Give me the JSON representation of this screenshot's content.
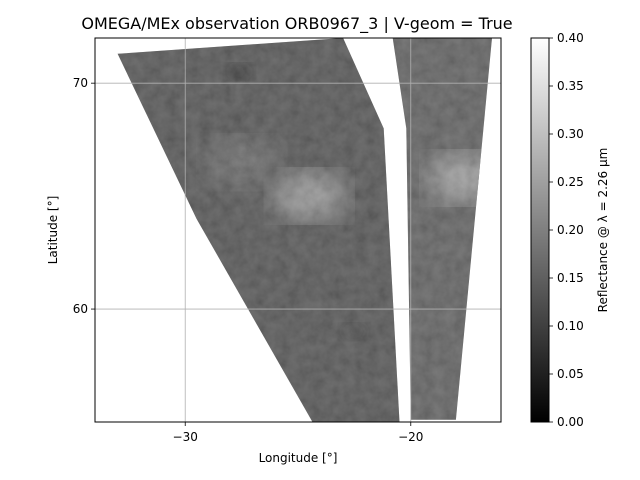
{
  "chart_data": {
    "type": "heatmap",
    "title": "OMEGA/MEx observation ORB0967_3 | V-geom = True",
    "xlabel": "Longitude [°]",
    "ylabel": "Latitude [°]",
    "xlim": [
      -34.0,
      -16.0
    ],
    "ylim": [
      55.0,
      72.0
    ],
    "xticks": [
      -30,
      -20
    ],
    "xtick_labels": [
      "−30",
      "−20"
    ],
    "yticks": [
      60,
      70
    ],
    "ytick_labels": [
      "60",
      "70"
    ],
    "grid": true,
    "colormap": "gray",
    "colorbar": {
      "label": "Reflectance @ λ = 2.26 µm",
      "range": [
        0.0,
        0.4
      ],
      "ticks": [
        0.0,
        0.05,
        0.1,
        0.15,
        0.2,
        0.25,
        0.3,
        0.35,
        0.4
      ],
      "tick_labels": [
        "0.00",
        "0.05",
        "0.10",
        "0.15",
        "0.20",
        "0.25",
        "0.30",
        "0.35",
        "0.40"
      ]
    },
    "swaths": [
      {
        "boundary": [
          [
            -33.0,
            71.3
          ],
          [
            -23.0,
            72.0
          ],
          [
            -21.2,
            68.0
          ],
          [
            -20.5,
            55.0
          ],
          [
            -24.3,
            54.9
          ],
          [
            -29.5,
            64.0
          ]
        ],
        "mean_reflectance": 0.12
      },
      {
        "boundary": [
          [
            -20.8,
            72.0
          ],
          [
            -16.4,
            72.0
          ],
          [
            -18.0,
            55.1
          ],
          [
            -20.0,
            55.1
          ],
          [
            -20.2,
            68.0
          ]
        ],
        "mean_reflectance": 0.14
      }
    ],
    "bright_regions": [
      {
        "lon": -24.5,
        "lat": 65.0,
        "reflectance": 0.24
      },
      {
        "lon": -17.6,
        "lat": 65.8,
        "reflectance": 0.25
      },
      {
        "lon": -27.5,
        "lat": 66.5,
        "reflectance": 0.16
      }
    ],
    "dark_regions": [
      {
        "lon": -27.6,
        "lat": 70.5,
        "reflectance": 0.06
      },
      {
        "lon": -22.5,
        "lat": 59.0,
        "reflectance": 0.09
      }
    ]
  }
}
